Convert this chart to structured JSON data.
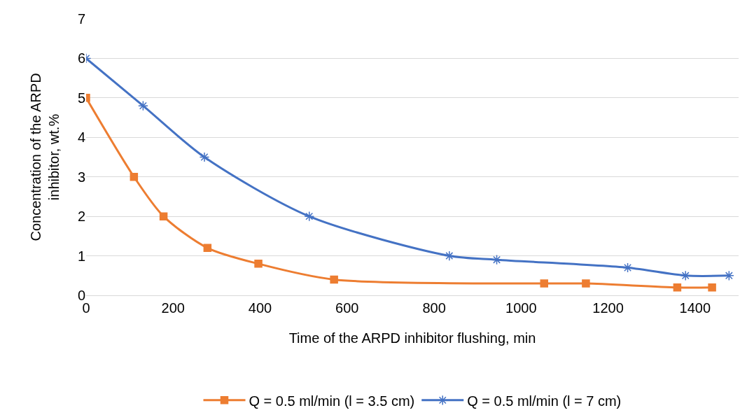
{
  "chart_data": {
    "type": "line",
    "xlabel": "Time of the ARPD inhibitor flushing, min",
    "ylabel": "Concentration of the ARPD inhibitor, wt.%",
    "xlim": [
      0,
      1500
    ],
    "xticks": [
      0,
      200,
      400,
      600,
      800,
      1000,
      1200,
      1400
    ],
    "ylim": [
      0,
      7
    ],
    "yticks": [
      0,
      1,
      2,
      3,
      4,
      5,
      6,
      7
    ],
    "grid": "y",
    "legend": "bottom",
    "series": [
      {
        "name": "Q = 0.5 ml/min (l = 3.5 cm)",
        "color": "#ed7d31",
        "marker": "square",
        "x": [
          0,
          110,
          178,
          279,
          396,
          570,
          1053,
          1149,
          1359,
          1439
        ],
        "values": [
          5,
          3,
          2,
          1.2,
          0.8,
          0.4,
          0.3,
          0.3,
          0.2,
          0.2
        ]
      },
      {
        "name": "Q = 0.5 ml/min (l = 7 cm)",
        "color": "#4472c4",
        "marker": "cross",
        "x": [
          0,
          131,
          272,
          513,
          835,
          944,
          1245,
          1378,
          1478
        ],
        "values": [
          6,
          4.8,
          3.5,
          2,
          1,
          0.9,
          0.7,
          0.5,
          0.5
        ]
      }
    ]
  }
}
